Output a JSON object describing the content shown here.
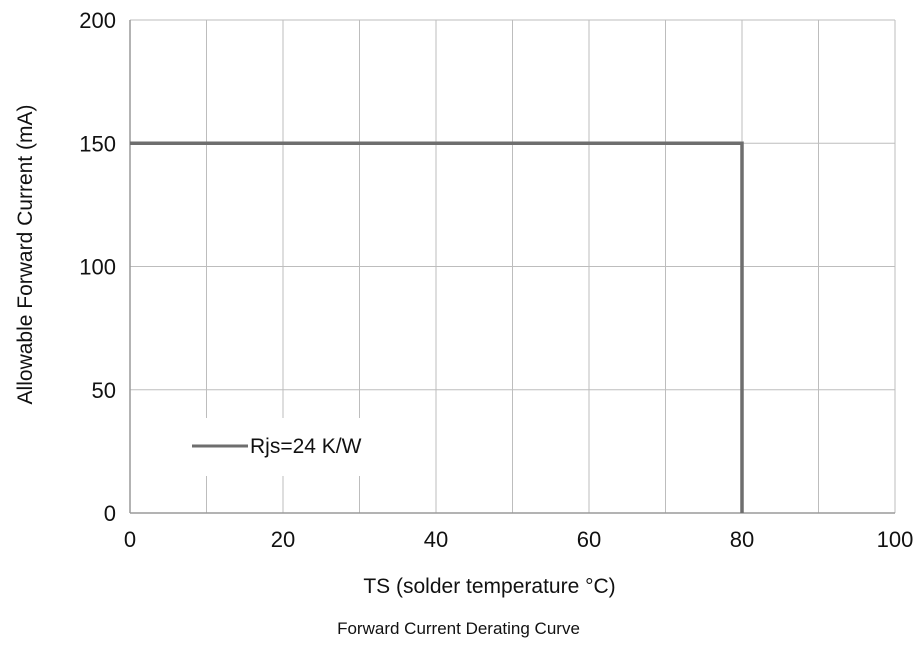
{
  "chart_data": {
    "type": "line",
    "title": "",
    "caption": "Forward Current Derating Curve",
    "xlabel": "TS  (solder temperature °C)",
    "ylabel": "Allowable  Forward Current (mA)",
    "xlim": [
      0,
      100
    ],
    "ylim": [
      0,
      200
    ],
    "xticks": [
      0,
      20,
      40,
      60,
      80,
      100
    ],
    "yticks": [
      0,
      50,
      100,
      150,
      200
    ],
    "x_gridlines": [
      10,
      20,
      30,
      40,
      50,
      60,
      70,
      80,
      90,
      100
    ],
    "y_gridlines": [
      50,
      100,
      150,
      200
    ],
    "grid": true,
    "legend_position": "bottom-left",
    "series": [
      {
        "name": "Rjs=24 K/W",
        "color": "#6e6e6e",
        "x": [
          0,
          80,
          80
        ],
        "y": [
          150,
          150,
          0
        ]
      }
    ]
  }
}
